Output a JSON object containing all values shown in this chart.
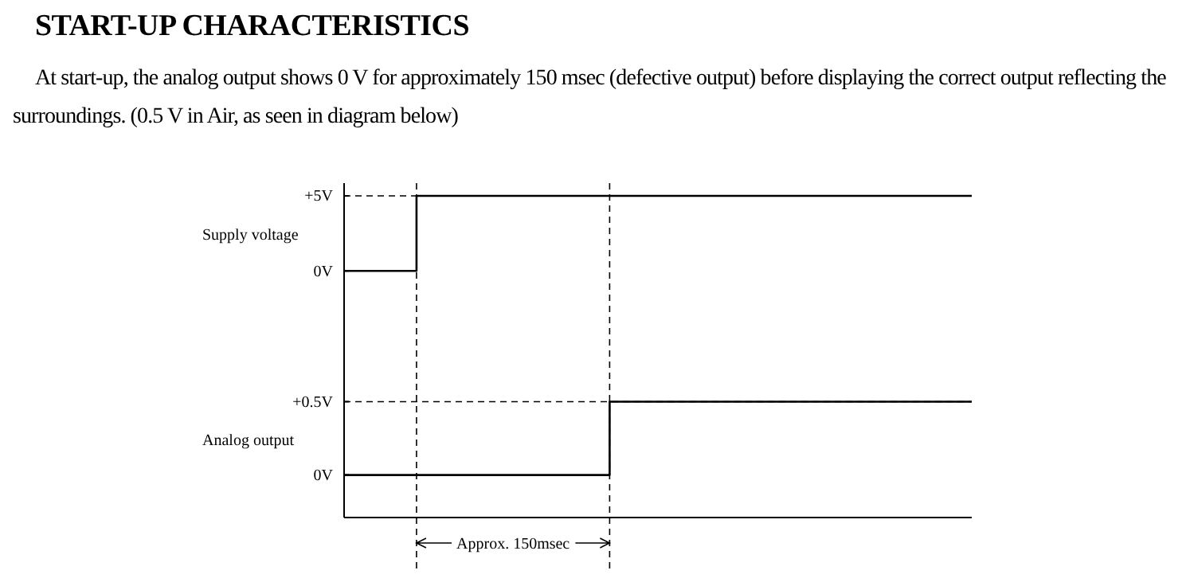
{
  "chart_data": [
    {
      "type": "step",
      "title": "START-UP CHARACTERISTICS",
      "subtitle": "At start-up, the analog output shows 0 V for approximately 150 msec (defective output) before displaying the correct output reflecting the surroundings. (0.5 V in Air, as seen in diagram below)",
      "ylabel": "Supply voltage",
      "categories": [
        null,
        null,
        null,
        null,
        null,
        null,
        null,
        null,
        null,
        null,
        null,
        null,
        null,
        null,
        null,
        null,
        null,
        null,
        null,
        null,
        null,
        null,
        null,
        null,
        null,
        null,
        null
      ],
      "ylim": [
        -5.3,
        5.85
      ],
      "yticks": [
        {
          "value": 5,
          "label": "+5V"
        },
        {
          "value": 0,
          "label": "0V"
        }
      ],
      "tick_labels": "y",
      "series": [
        {
          "color": "#000000",
          "values": [
            0,
            0,
            0,
            5,
            5,
            5,
            5,
            5,
            5,
            5,
            5,
            5,
            5,
            5,
            5,
            5,
            5,
            5,
            5,
            5,
            5,
            5,
            5,
            5,
            5,
            5,
            5
          ]
        }
      ],
      "ref_lines": [
        {
          "axis": "y",
          "value": 5,
          "line_style": "dashed",
          "color": "#000000"
        }
      ]
    },
    {
      "type": "step",
      "ylabel": "Analog output",
      "categories": [
        null,
        null,
        null,
        null,
        null,
        null,
        null,
        null,
        null,
        null,
        null,
        null,
        null,
        null,
        null,
        null,
        null,
        null,
        null,
        null,
        null,
        null,
        null,
        null,
        null,
        null,
        null
      ],
      "ylim": [
        -0.29,
        0.85
      ],
      "yticks": [
        {
          "value": 0.5,
          "label": "+0.5V"
        },
        {
          "value": 0,
          "label": "0V"
        }
      ],
      "tick_labels": "y",
      "series": [
        {
          "color": "#000000",
          "values": [
            0,
            0,
            0,
            0,
            0,
            0,
            0,
            0,
            0,
            0,
            0,
            0.5,
            0.5,
            0.5,
            0.5,
            0.5,
            0.5,
            0.5,
            0.5,
            0.5,
            0.5,
            0.5,
            0.5,
            0.5,
            0.5,
            0.5,
            0.5
          ]
        }
      ],
      "ref_lines": [
        {
          "axis": "y",
          "value": 0.5,
          "line_style": "dashed",
          "color": "#000000"
        }
      ],
      "annotations": [
        "Approx. 150msec"
      ]
    }
  ]
}
